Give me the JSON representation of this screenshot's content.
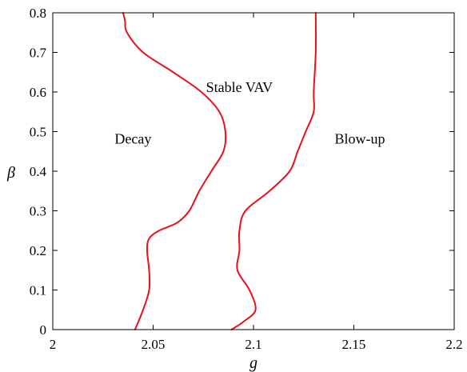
{
  "chart_data": {
    "type": "line",
    "title": "",
    "xlabel": "g",
    "ylabel": "β",
    "xlim": [
      2.0,
      2.2
    ],
    "ylim": [
      0.0,
      0.8
    ],
    "grid": false,
    "x_ticks": [
      2,
      2.05,
      2.1,
      2.15,
      2.2
    ],
    "x_tick_labels": [
      "2",
      "2.05",
      "2.1",
      "2.15",
      "2.2"
    ],
    "y_ticks": [
      0,
      0.1,
      0.2,
      0.3,
      0.4,
      0.5,
      0.6,
      0.7,
      0.8
    ],
    "y_tick_labels": [
      "0",
      "0.1",
      "0.2",
      "0.3",
      "0.4",
      "0.5",
      "0.6",
      "0.7",
      "0.8"
    ],
    "color": "#e8111b",
    "series": [
      {
        "points": [
          [
            2.041,
            0.0
          ],
          [
            2.045,
            0.05
          ],
          [
            2.048,
            0.1
          ],
          [
            2.048,
            0.15
          ],
          [
            2.047,
            0.2
          ],
          [
            2.048,
            0.23
          ],
          [
            2.053,
            0.25
          ],
          [
            2.062,
            0.27
          ],
          [
            2.068,
            0.3
          ],
          [
            2.073,
            0.35
          ],
          [
            2.079,
            0.4
          ],
          [
            2.085,
            0.45
          ],
          [
            2.086,
            0.5
          ],
          [
            2.083,
            0.55
          ],
          [
            2.074,
            0.6
          ],
          [
            2.06,
            0.65
          ],
          [
            2.045,
            0.7
          ],
          [
            2.037,
            0.75
          ],
          [
            2.036,
            0.78
          ],
          [
            2.035,
            0.8
          ]
        ]
      },
      {
        "points": [
          [
            2.089,
            0.0
          ],
          [
            2.095,
            0.02
          ],
          [
            2.101,
            0.05
          ],
          [
            2.098,
            0.1
          ],
          [
            2.092,
            0.15
          ],
          [
            2.093,
            0.2
          ],
          [
            2.093,
            0.25
          ],
          [
            2.096,
            0.3
          ],
          [
            2.108,
            0.35
          ],
          [
            2.118,
            0.4
          ],
          [
            2.122,
            0.45
          ],
          [
            2.126,
            0.5
          ],
          [
            2.13,
            0.55
          ],
          [
            2.13,
            0.6
          ],
          [
            2.131,
            0.7
          ],
          [
            2.131,
            0.8
          ]
        ]
      }
    ],
    "annotations": [
      {
        "text": "Decay",
        "x": 2.04,
        "y": 0.47
      },
      {
        "text": "Stable VAV",
        "x": 2.093,
        "y": 0.6
      },
      {
        "text": "Blow-up",
        "x": 2.153,
        "y": 0.47
      }
    ]
  }
}
